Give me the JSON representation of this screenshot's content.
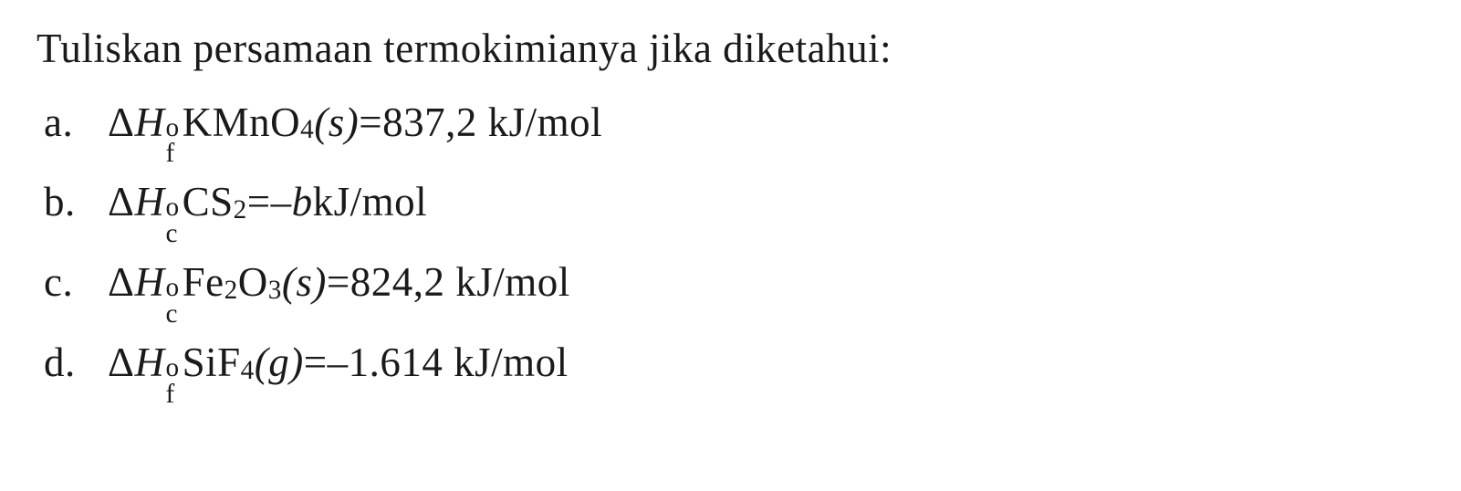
{
  "question": {
    "prompt": "Tuliskan persamaan termokimianya jika diketahui:",
    "font_size": 45,
    "color": "#1a1a1a",
    "background_color": "#ffffff"
  },
  "options": {
    "a": {
      "label": "a.",
      "delta": "Δ",
      "enthalpy_var": "H",
      "enthalpy_sup": "o",
      "enthalpy_sub": "f",
      "compound_prefix": " KMnO",
      "compound_sub": "4",
      "state": "(s)",
      "equals": " = ",
      "value": "837,2 kJ/mol"
    },
    "b": {
      "label": "b.",
      "delta": "Δ",
      "enthalpy_var": "H",
      "enthalpy_sup": "o",
      "enthalpy_sub": "c",
      "compound_prefix": " CS",
      "compound_sub": "2",
      "state": "",
      "equals": " = ",
      "value_prefix": "–",
      "value_var": "b",
      "value_suffix": " kJ/mol"
    },
    "c": {
      "label": "c.",
      "delta": "Δ",
      "enthalpy_var": "H",
      "enthalpy_sup": "o",
      "enthalpy_sub": "c",
      "compound_prefix": " Fe",
      "compound_sub1": "2",
      "compound_mid": "O",
      "compound_sub2": "3",
      "state": "(s)",
      "equals": " = ",
      "value": "824,2 kJ/mol"
    },
    "d": {
      "label": "d.",
      "delta": "Δ",
      "enthalpy_var": "H",
      "enthalpy_sup": "o",
      "enthalpy_sub": "f",
      "compound_prefix": " SiF",
      "compound_sub": "4",
      "state": "(g)",
      "equals": " = ",
      "value": "–1.614 kJ/mol"
    }
  }
}
